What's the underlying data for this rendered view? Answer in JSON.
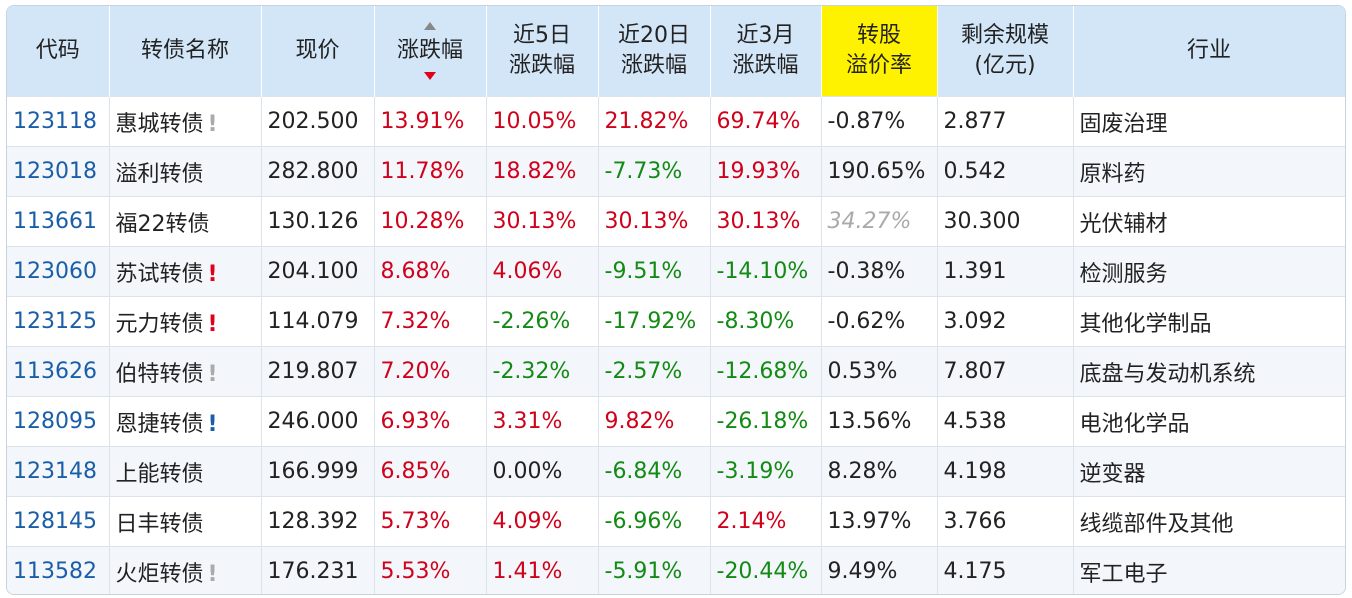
{
  "table": {
    "headers": [
      [
        "代码"
      ],
      [
        "转债名称"
      ],
      [
        "现价"
      ],
      [
        "涨跌幅"
      ],
      [
        "近5日",
        "涨跌幅"
      ],
      [
        "近20日",
        "涨跌幅"
      ],
      [
        "近3月",
        "涨跌幅"
      ],
      [
        "转股",
        "溢价率"
      ],
      [
        "剩余规模",
        "(亿元)"
      ],
      [
        "行业"
      ]
    ],
    "highlight_header": 7,
    "rows": [
      {
        "cells": [
          "123118",
          "惠城转债",
          "202.500",
          "13.91%",
          "10.05%",
          "21.82%",
          "69.74%",
          "-0.87%",
          "2.877",
          "固废治理"
        ],
        "mark": "!",
        "mark_color": "#aaaaaa"
      },
      {
        "cells": [
          "123018",
          "溢利转债",
          "282.800",
          "11.78%",
          "18.82%",
          "-7.73%",
          "19.93%",
          "190.65%",
          "0.542",
          "原料药"
        ]
      },
      {
        "cells": [
          "113661",
          "福22转债",
          "130.126",
          "10.28%",
          "30.13%",
          "30.13%",
          "30.13%",
          "34.27%",
          "30.300",
          "光伏辅材"
        ],
        "muted": [
          7
        ]
      },
      {
        "cells": [
          "123060",
          "苏试转债",
          "204.100",
          "8.68%",
          "4.06%",
          "-9.51%",
          "-14.10%",
          "-0.38%",
          "1.391",
          "检测服务"
        ],
        "mark": "!",
        "mark_color": "#e0001a"
      },
      {
        "cells": [
          "123125",
          "元力转债",
          "114.079",
          "7.32%",
          "-2.26%",
          "-17.92%",
          "-8.30%",
          "-0.62%",
          "3.092",
          "其他化学制品"
        ],
        "mark": "!",
        "mark_color": "#e0001a"
      },
      {
        "cells": [
          "113626",
          "伯特转债",
          "219.807",
          "7.20%",
          "-2.32%",
          "-2.57%",
          "-12.68%",
          "0.53%",
          "7.807",
          "底盘与发动机系统"
        ],
        "mark": "!",
        "mark_color": "#aaaaaa"
      },
      {
        "cells": [
          "128095",
          "恩捷转债",
          "246.000",
          "6.93%",
          "3.31%",
          "9.82%",
          "-26.18%",
          "13.56%",
          "4.538",
          "电池化学品"
        ],
        "mark": "!",
        "mark_color": "#1a5ea8"
      },
      {
        "cells": [
          "123148",
          "上能转债",
          "166.999",
          "6.85%",
          "0.00%",
          "-6.84%",
          "-3.19%",
          "8.28%",
          "4.198",
          "逆变器"
        ]
      },
      {
        "cells": [
          "128145",
          "日丰转债",
          "128.392",
          "5.73%",
          "4.09%",
          "-6.96%",
          "2.14%",
          "13.97%",
          "3.766",
          "线缆部件及其他"
        ]
      },
      {
        "cells": [
          "113582",
          "火炬转债",
          "176.231",
          "5.53%",
          "1.41%",
          "-5.91%",
          "-20.44%",
          "9.49%",
          "4.175",
          "军工电子"
        ],
        "mark": "!",
        "mark_color": "#aaaaaa"
      }
    ]
  }
}
